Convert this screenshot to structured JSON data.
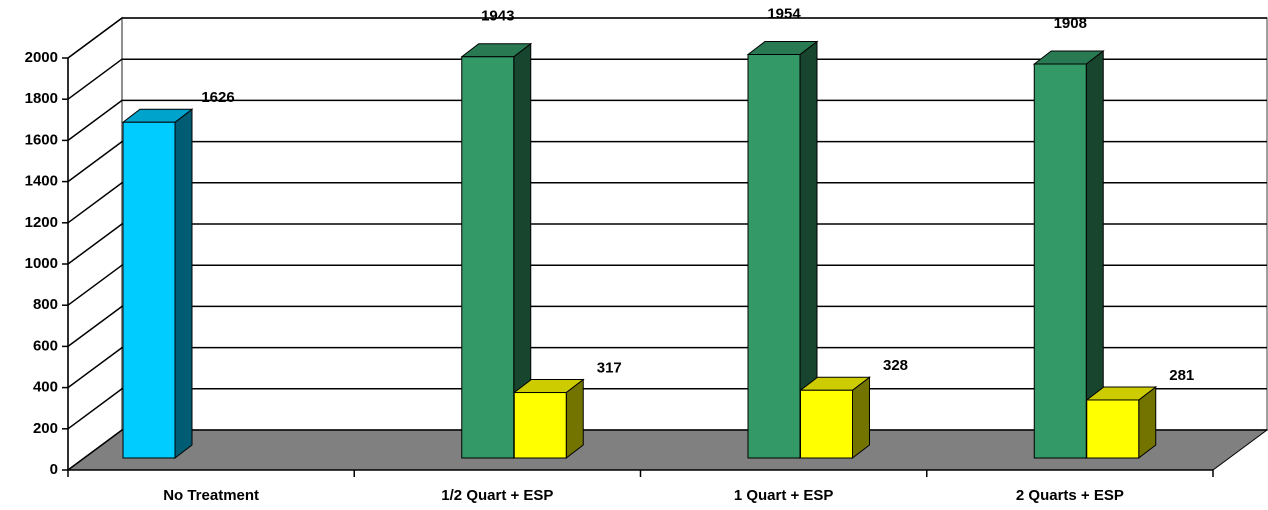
{
  "chart_data": {
    "type": "bar3d",
    "categories": [
      "No Treatment",
      "1/2 Quart + ESP",
      "1 Quart + ESP",
      "2 Quarts + ESP"
    ],
    "series": [
      {
        "color": "#00ccff",
        "values": [
          1626,
          null,
          null,
          null
        ]
      },
      {
        "color": "#339966",
        "values": [
          null,
          1943,
          1954,
          1908
        ]
      },
      {
        "color": "#ffff00",
        "values": [
          null,
          317,
          328,
          281
        ]
      }
    ],
    "ylim": [
      0,
      2000
    ],
    "yticks": [
      0,
      200,
      400,
      600,
      800,
      1000,
      1200,
      1400,
      1600,
      1800,
      2000
    ],
    "grid": true
  }
}
